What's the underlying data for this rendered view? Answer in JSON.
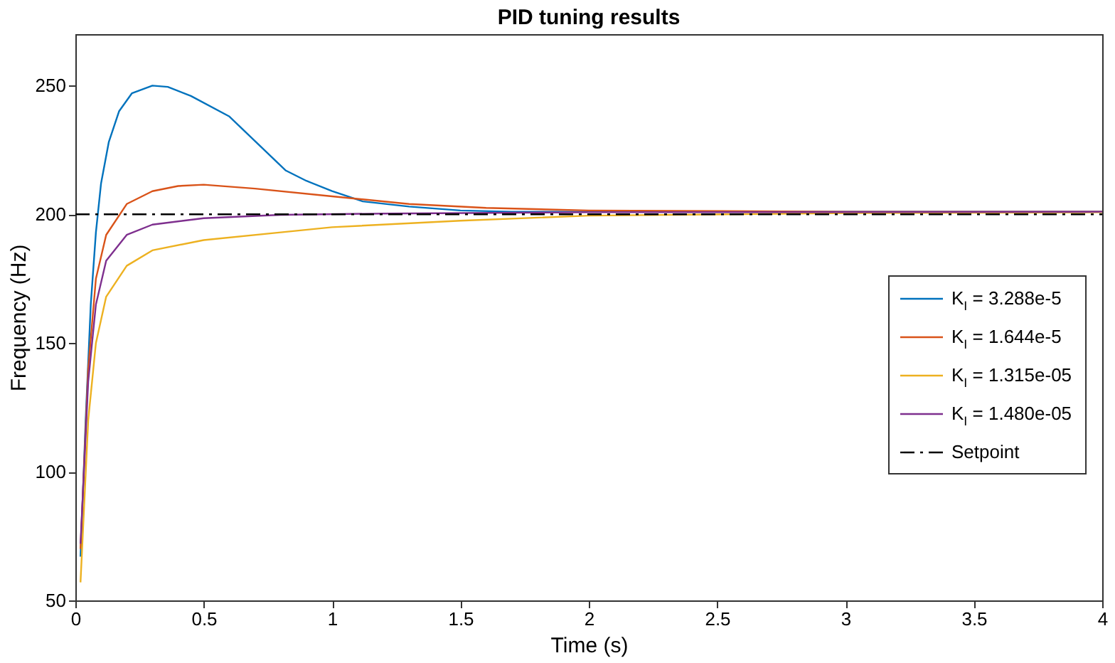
{
  "chart_data": {
    "type": "line",
    "title": "PID tuning results",
    "xlabel": "Time (s)",
    "ylabel": "Frequency (Hz)",
    "xlim": [
      0,
      4
    ],
    "xticks": [
      0,
      0.5,
      1,
      1.5,
      2,
      2.5,
      3,
      3.5,
      4
    ],
    "ylim": [
      50,
      270
    ],
    "yticks": [
      50,
      100,
      150,
      200,
      250
    ],
    "grid": false,
    "legend": "right",
    "line_style": "solid",
    "series": [
      {
        "name": "K$_{I}$ = 3.288e-5",
        "color": "#0072bd",
        "x": [
          0.02,
          0.04,
          0.06,
          0.08,
          0.1,
          0.13,
          0.17,
          0.22,
          0.3,
          0.36,
          0.45,
          0.6,
          0.82,
          0.9,
          1.0,
          1.12,
          1.3,
          1.5,
          1.7,
          2,
          3,
          4
        ],
        "values": [
          67,
          120,
          165,
          193,
          212,
          228,
          240,
          247,
          250,
          249.5,
          246,
          238,
          217,
          213,
          209,
          205,
          203,
          201.5,
          201,
          201,
          201,
          201
        ]
      },
      {
        "name": "K$_{I}$ = 1.644e-5",
        "color": "#d95319",
        "x": [
          0.02,
          0.05,
          0.08,
          0.12,
          0.2,
          0.3,
          0.4,
          0.5,
          0.7,
          1,
          1.3,
          1.6,
          2,
          3,
          4
        ],
        "values": [
          70,
          140,
          175,
          192,
          204,
          209,
          211,
          211.5,
          210,
          207,
          204,
          202.5,
          201.5,
          201,
          201
        ]
      },
      {
        "name": "K$_{I}$ = 1.315e-05",
        "color": "#edb120",
        "x": [
          0.02,
          0.05,
          0.08,
          0.12,
          0.2,
          0.3,
          0.5,
          0.8,
          1,
          1.5,
          2,
          3,
          4
        ],
        "values": [
          57,
          120,
          150,
          168,
          180,
          186,
          190,
          193,
          195,
          197.5,
          199.5,
          200.5,
          200.8
        ]
      },
      {
        "name": "K$_{I}$ = 1.480e-05",
        "color": "#7e2f8e",
        "x": [
          0.02,
          0.05,
          0.08,
          0.12,
          0.2,
          0.3,
          0.5,
          0.8,
          1.2,
          2,
          4
        ],
        "values": [
          72,
          135,
          165,
          182,
          192,
          196,
          198.5,
          199.8,
          200.3,
          200.8,
          201
        ]
      },
      {
        "name": "Setpoint",
        "color": "#000000",
        "line_style": "dashed",
        "x": [
          0,
          4
        ],
        "values": [
          200,
          200
        ]
      }
    ]
  }
}
